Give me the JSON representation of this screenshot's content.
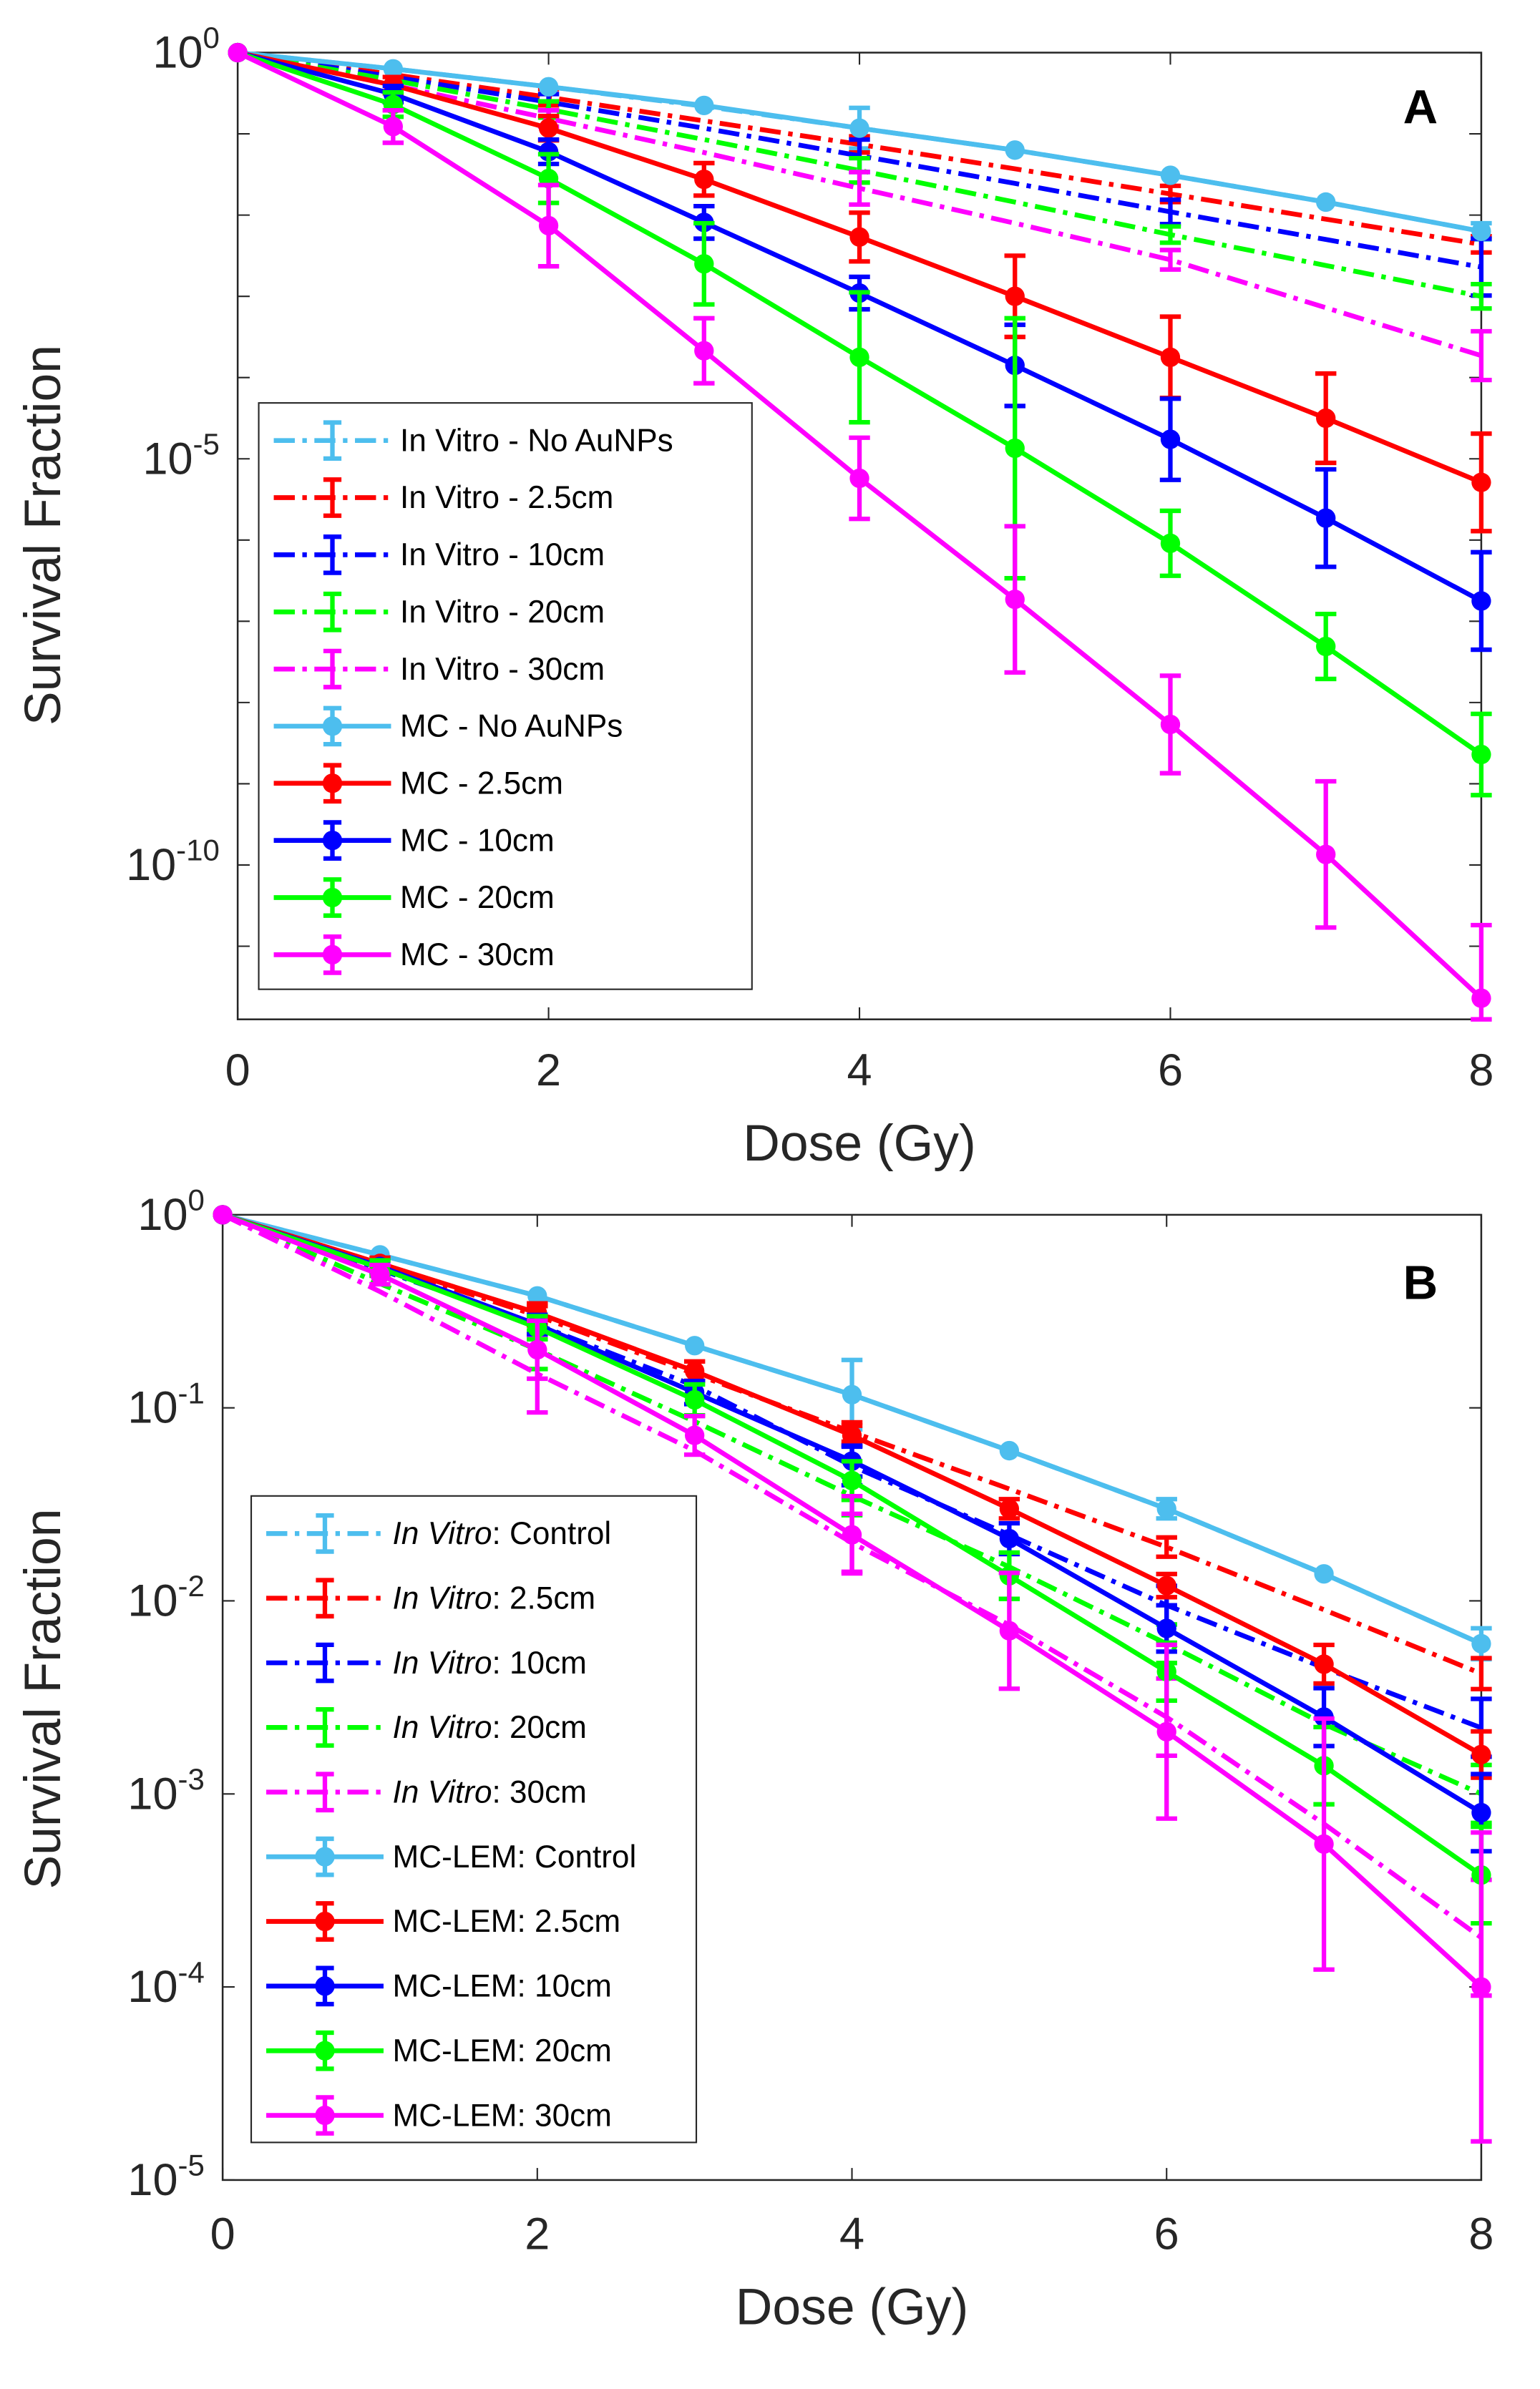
{
  "colors": {
    "nogold": "#4DBEEE",
    "c25": "#FF0000",
    "c10": "#0000FF",
    "c20": "#00FF00",
    "c30": "#FF00FF",
    "axis": "#262626"
  },
  "chart_data": [
    {
      "type": "line",
      "panel_label": "A",
      "xlabel": "Dose (Gy)",
      "ylabel": "Survival Fraction",
      "yscale": "log",
      "xlim": [
        0,
        8
      ],
      "ylim_log10": [
        -11.9,
        0
      ],
      "xticks": [
        0,
        2,
        4,
        6,
        8
      ],
      "ytick_exponents": [
        0,
        -5,
        -10
      ],
      "legend_position": "bottom-left",
      "grid": false,
      "x": [
        0,
        1,
        2,
        3,
        4,
        5,
        6,
        7,
        8
      ],
      "series": [
        {
          "name": "In Vitro - No AuNPs",
          "style": "dashed",
          "color": "nogold",
          "log10_values": [
            0,
            -0.2,
            -0.42,
            -0.66,
            -0.93,
            -1.2,
            -1.51,
            -1.84,
            -2.2
          ],
          "err_log10": [
            0,
            0,
            0,
            0,
            0.25,
            0,
            0,
            0,
            0.1
          ]
        },
        {
          "name": "In Vitro - 2.5cm",
          "style": "dashed",
          "color": "c25",
          "log10_values": [
            0,
            -0.27,
            -0.55,
            -0.84,
            -1.13,
            -1.43,
            -1.74,
            -2.05,
            -2.36
          ],
          "err_log10": [
            0,
            0,
            0.1,
            0,
            0.1,
            0,
            0.1,
            0,
            0.1
          ]
        },
        {
          "name": "In Vitro - 10cm",
          "style": "dashed",
          "color": "c10",
          "log10_values": [
            0,
            -0.3,
            -0.61,
            -0.93,
            -1.27,
            -1.61,
            -1.96,
            -2.3,
            -2.64
          ],
          "err_log10": [
            0,
            0,
            0.1,
            0,
            0.2,
            0,
            0.15,
            0,
            0.35
          ]
        },
        {
          "name": "In Vitro - 20cm",
          "style": "dashed",
          "color": "c20",
          "log10_values": [
            0,
            -0.34,
            -0.7,
            -1.07,
            -1.45,
            -1.84,
            -2.24,
            -2.62,
            -3.0
          ],
          "err_log10": [
            0,
            0,
            0.1,
            0,
            0.15,
            0,
            0.1,
            0,
            0.15
          ]
        },
        {
          "name": "In Vitro - 30cm",
          "style": "dashed",
          "color": "c30",
          "log10_values": [
            0,
            -0.4,
            -0.81,
            -1.23,
            -1.67,
            -2.1,
            -2.55,
            -3.14,
            -3.73
          ],
          "err_log10": [
            0,
            0,
            0.1,
            0,
            0.2,
            0,
            0.12,
            0,
            0.3
          ]
        },
        {
          "name": "MC - No AuNPs",
          "style": "solid",
          "color": "nogold",
          "log10_values": [
            0,
            -0.2,
            -0.42,
            -0.65,
            -0.93,
            -1.2,
            -1.51,
            -1.84,
            -2.2
          ],
          "err_log10": [
            0,
            0,
            0,
            0,
            0,
            0,
            0,
            0,
            0
          ]
        },
        {
          "name": "MC - 2.5cm",
          "style": "solid",
          "color": "c25",
          "log10_values": [
            0,
            -0.4,
            -0.93,
            -1.56,
            -2.27,
            -3.0,
            -3.75,
            -4.5,
            -5.29
          ],
          "err_log10": [
            0,
            0.1,
            0.15,
            0.2,
            0.3,
            0.5,
            0.5,
            0.55,
            0.6
          ]
        },
        {
          "name": "MC - 10cm",
          "style": "solid",
          "color": "c10",
          "log10_values": [
            0,
            -0.51,
            -1.22,
            -2.09,
            -2.96,
            -3.85,
            -4.76,
            -5.73,
            -6.75
          ],
          "err_log10": [
            0,
            0.1,
            0.15,
            0.2,
            0.2,
            0.5,
            0.5,
            0.6,
            0.6
          ]
        },
        {
          "name": "MC - 20cm",
          "style": "solid",
          "color": "c20",
          "log10_values": [
            0,
            -0.64,
            -1.55,
            -2.6,
            -3.75,
            -4.87,
            -6.04,
            -7.31,
            -8.64
          ],
          "err_log10": [
            0,
            0.15,
            0.3,
            0.5,
            0.8,
            1.6,
            0.4,
            0.4,
            0.5
          ]
        },
        {
          "name": "MC - 30cm",
          "style": "solid",
          "color": "c30",
          "log10_values": [
            0,
            -0.91,
            -2.13,
            -3.67,
            -5.24,
            -6.73,
            -8.27,
            -9.87,
            -11.64
          ],
          "err_log10": [
            0,
            0.2,
            0.5,
            0.4,
            0.5,
            0.9,
            0.6,
            0.9,
            0.9
          ]
        }
      ]
    },
    {
      "type": "line",
      "panel_label": "B",
      "xlabel": "Dose (Gy)",
      "ylabel": "Survival Fraction",
      "yscale": "log",
      "xlim": [
        0,
        8
      ],
      "ylim_log10": [
        -5,
        0
      ],
      "xticks": [
        0,
        2,
        4,
        6,
        8
      ],
      "ytick_exponents": [
        0,
        -1,
        -2,
        -3,
        -4,
        -5
      ],
      "legend_position": "bottom-left",
      "grid": false,
      "x": [
        0,
        1,
        2,
        3,
        4,
        5,
        6,
        7,
        8
      ],
      "series": [
        {
          "name": "In Vitro: Control",
          "italic": "In Vitro",
          "suffix": ": Control",
          "style": "dashed",
          "color": "nogold",
          "values": [
            1,
            0.62,
            0.38,
            0.21,
            0.117,
            0.06,
            0.03,
            0.0138,
            0.006
          ],
          "err_log10": [
            0,
            0,
            0,
            0,
            0.18,
            0,
            0.05,
            0,
            0.08
          ]
        },
        {
          "name": "In Vitro: 2.5cm",
          "italic": "In Vitro",
          "suffix": ": 2.5cm",
          "style": "dashed",
          "color": "c25",
          "values": [
            1,
            0.55,
            0.3,
            0.15,
            0.075,
            0.038,
            0.019,
            0.009,
            0.0042
          ],
          "err_log10": [
            0,
            0,
            0.05,
            0,
            0.05,
            0,
            0.05,
            0,
            0.08
          ]
        },
        {
          "name": "In Vitro: 10cm",
          "italic": "In Vitro",
          "suffix": ": 10cm",
          "style": "dashed",
          "color": "c10",
          "values": [
            1,
            0.52,
            0.27,
            0.13,
            0.05,
            0.022,
            0.0095,
            0.0045,
            0.0022
          ],
          "err_log10": [
            0,
            0,
            0.05,
            0,
            0.1,
            0,
            0.1,
            0,
            0.15
          ]
        },
        {
          "name": "In Vitro: 20cm",
          "italic": "In Vitro",
          "suffix": ": 20cm",
          "style": "dashed",
          "color": "c20",
          "values": [
            1,
            0.44,
            0.2,
            0.085,
            0.035,
            0.015,
            0.006,
            0.0023,
            0.001
          ],
          "err_log10": [
            0,
            0,
            0.1,
            0,
            0.1,
            0,
            0.1,
            0,
            0.15
          ]
        },
        {
          "name": "In Vitro: 30cm",
          "italic": "In Vitro",
          "suffix": ": 30cm",
          "style": "dashed",
          "color": "c30",
          "values": [
            1,
            0.4,
            0.15,
            0.06,
            0.02,
            0.0075,
            0.0025,
            0.0007,
            0.00018
          ],
          "err_log10": [
            0,
            0,
            0.2,
            0,
            0.15,
            0,
            0.2,
            0,
            0.3
          ]
        },
        {
          "name": "MC-LEM: Control",
          "italic": "",
          "suffix": "MC-LEM: Control",
          "style": "solid",
          "color": "nogold",
          "values": [
            1,
            0.62,
            0.38,
            0.21,
            0.117,
            0.06,
            0.03,
            0.0138,
            0.006
          ],
          "err_log10": [
            0,
            0,
            0,
            0,
            0,
            0,
            0,
            0,
            0
          ]
        },
        {
          "name": "MC-LEM: 2.5cm",
          "italic": "",
          "suffix": "MC-LEM: 2.5cm",
          "style": "solid",
          "color": "c25",
          "values": [
            1,
            0.56,
            0.31,
            0.155,
            0.072,
            0.03,
            0.012,
            0.0047,
            0.0016
          ],
          "err_log10": [
            0,
            0.03,
            0.05,
            0.05,
            0.05,
            0.05,
            0.06,
            0.1,
            0.12
          ]
        },
        {
          "name": "MC-LEM: 10cm",
          "italic": "",
          "suffix": "MC-LEM: 10cm",
          "style": "solid",
          "color": "c10",
          "values": [
            1,
            0.54,
            0.27,
            0.12,
            0.053,
            0.021,
            0.0072,
            0.0025,
            0.0008
          ],
          "err_log10": [
            0,
            0.03,
            0.05,
            0.06,
            0.08,
            0.08,
            0.12,
            0.15,
            0.2
          ]
        },
        {
          "name": "MC-LEM: 20cm",
          "italic": "",
          "suffix": "MC-LEM: 20cm",
          "style": "solid",
          "color": "c20",
          "values": [
            1,
            0.53,
            0.26,
            0.11,
            0.042,
            0.0135,
            0.0043,
            0.0014,
            0.00038
          ],
          "err_log10": [
            0,
            0.04,
            0.06,
            0.08,
            0.1,
            0.12,
            0.15,
            0.2,
            0.25
          ]
        },
        {
          "name": "MC-LEM: 30cm",
          "italic": "",
          "suffix": "MC-LEM: 30cm",
          "style": "solid",
          "color": "c30",
          "values": [
            1,
            0.49,
            0.2,
            0.072,
            0.022,
            0.007,
            0.0021,
            0.00055,
            0.0001
          ],
          "err_log10": [
            0,
            0.05,
            0.15,
            0.1,
            0.2,
            0.3,
            0.45,
            0.65,
            0.8
          ]
        }
      ]
    }
  ]
}
